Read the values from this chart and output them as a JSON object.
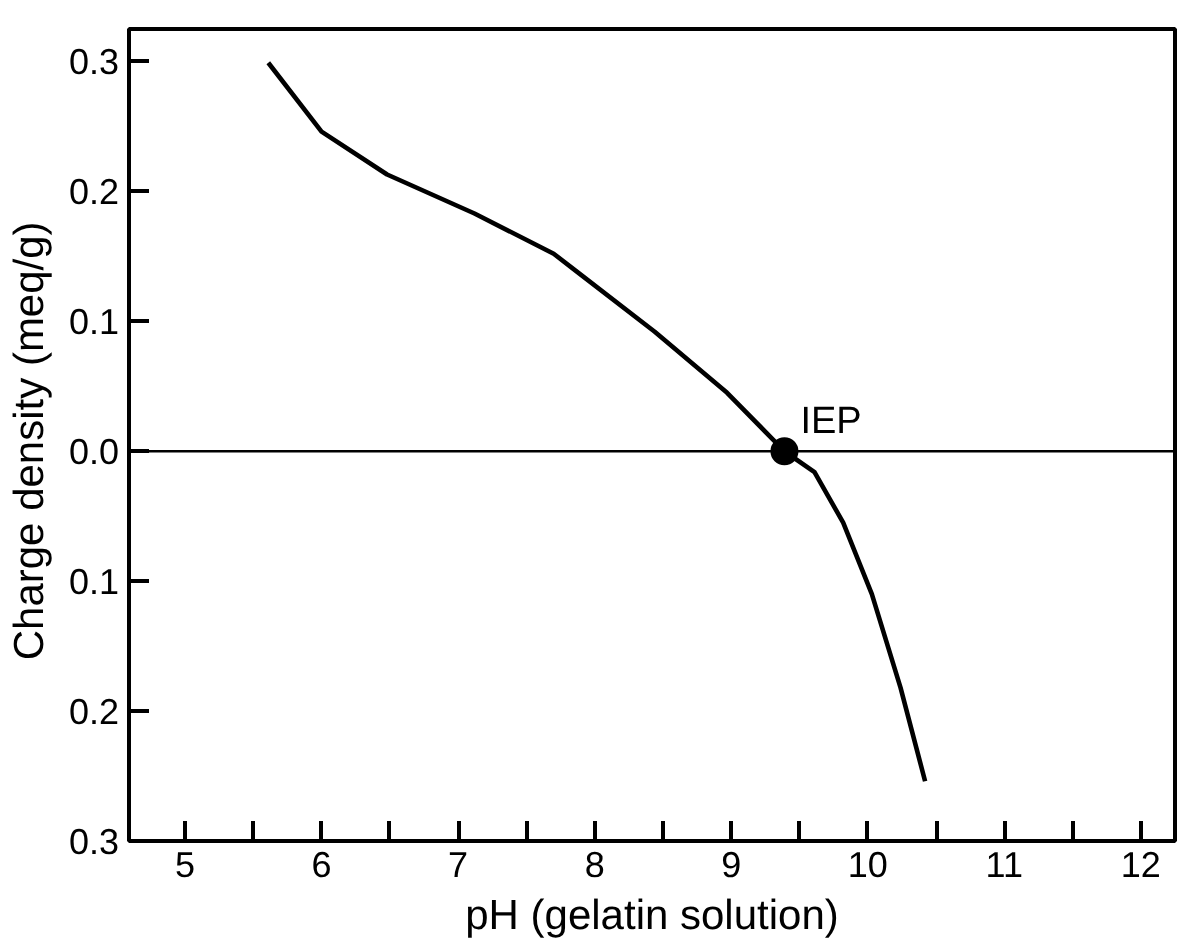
{
  "chart_data": {
    "type": "line",
    "xlabel": "pH (gelatin solution)",
    "ylabel": "Charge density  (meq/g)",
    "series": [
      {
        "color": "#000000",
        "x": [
          5.61,
          6.0,
          6.48,
          7.12,
          7.7,
          7.86,
          8.44,
          8.97,
          9.39,
          9.61,
          9.82,
          10.03,
          10.24,
          10.42
        ],
        "values": [
          0.299,
          0.246,
          0.213,
          0.183,
          0.152,
          0.139,
          0.092,
          0.045,
          0.0,
          -0.016,
          -0.055,
          -0.11,
          -0.182,
          -0.254
        ]
      },
      {
        "type": "scatter",
        "marker": "circle",
        "color": "#000000",
        "x": [
          9.39
        ],
        "values": [
          0.0
        ]
      }
    ],
    "annotations": [
      {
        "text": "IEP",
        "x": 9.39,
        "y": 0.0
      }
    ],
    "ref_lines": [
      {
        "axis": "y",
        "value": 0.0,
        "color": "#000000"
      }
    ],
    "xlim": [
      4.59,
      12.25
    ],
    "ylim": [
      -0.3,
      0.325
    ],
    "xticks": [
      5,
      {
        "value": 5.5,
        "label": null
      },
      6,
      {
        "value": 6.5,
        "label": null
      },
      7,
      {
        "value": 7.5,
        "label": null
      },
      8,
      {
        "value": 8.5,
        "label": null
      },
      9,
      {
        "value": 9.5,
        "label": null
      },
      10,
      {
        "value": 10.5,
        "label": null
      },
      11,
      {
        "value": 11.5,
        "label": null
      },
      12
    ],
    "yticks": [
      {
        "value": -0.3,
        "label": "0.3"
      },
      {
        "value": -0.2,
        "label": "0.2"
      },
      {
        "value": -0.1,
        "label": "0.1"
      },
      {
        "value": 0.0,
        "label": "0.0"
      },
      0.1,
      0.2,
      0.3
    ],
    "grid": false,
    "line_style": "solid"
  }
}
